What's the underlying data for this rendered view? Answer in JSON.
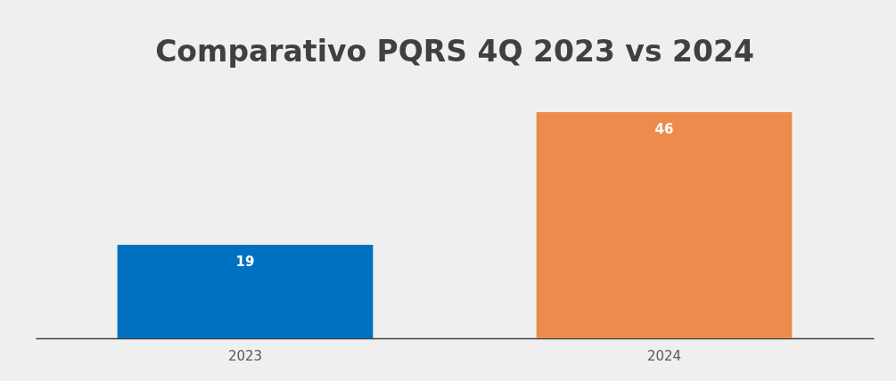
{
  "chart_data": {
    "type": "bar",
    "title": "Comparativo PQRS 4Q 2023 vs 2024",
    "categories": [
      "2023",
      "2024"
    ],
    "values": [
      19,
      46
    ],
    "colors": [
      "#0070c0",
      "#ed8b4c"
    ],
    "data_labels": true
  }
}
